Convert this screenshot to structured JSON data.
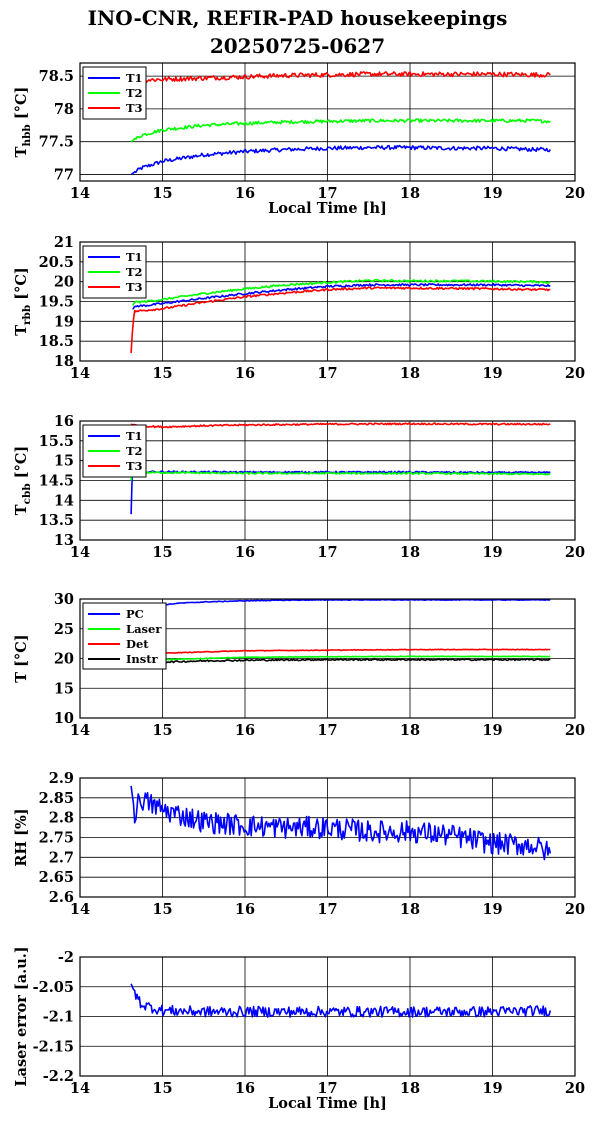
{
  "title": {
    "line1": "INO-CNR, REFIR-PAD housekeepings",
    "line2": "20250725-0627"
  },
  "chart_data": [
    {
      "type": "line",
      "ylabel": "T",
      "ylabel_sub": "hbb",
      "ylabel_unit": " [°C]",
      "xlabel": "Local Time [h]",
      "xlim": [
        14,
        20
      ],
      "ylim": [
        76.9,
        78.7
      ],
      "yticks": [
        77,
        77.5,
        78,
        78.5
      ],
      "xticks": [
        14,
        15,
        16,
        17,
        18,
        19,
        20
      ],
      "grid": true,
      "legend": "top-left",
      "series": [
        {
          "name": "T1",
          "color": "#0000ff",
          "x": [
            14.62,
            14.75,
            15.0,
            15.5,
            16.0,
            16.5,
            17.0,
            17.5,
            18.0,
            18.5,
            19.0,
            19.5,
            19.7
          ],
          "y": [
            77.0,
            77.1,
            77.2,
            77.3,
            77.35,
            77.38,
            77.4,
            77.41,
            77.41,
            77.4,
            77.4,
            77.38,
            77.38
          ],
          "noise": 0.03
        },
        {
          "name": "T2",
          "color": "#00ff00",
          "x": [
            14.62,
            14.75,
            15.0,
            15.5,
            16.0,
            16.5,
            17.0,
            17.5,
            18.0,
            18.5,
            19.0,
            19.5,
            19.7
          ],
          "y": [
            77.5,
            77.6,
            77.68,
            77.75,
            77.78,
            77.8,
            77.81,
            77.82,
            77.82,
            77.82,
            77.82,
            77.82,
            77.81
          ],
          "noise": 0.025
        },
        {
          "name": "T3",
          "color": "#ff0000",
          "x": [
            14.62,
            14.75,
            15.0,
            15.5,
            16.0,
            16.5,
            17.0,
            17.5,
            18.0,
            18.5,
            19.0,
            19.5,
            19.7
          ],
          "y": [
            78.42,
            78.44,
            78.45,
            78.47,
            78.49,
            78.51,
            78.52,
            78.53,
            78.53,
            78.53,
            78.53,
            78.52,
            78.52
          ],
          "noise": 0.035
        }
      ]
    },
    {
      "type": "line",
      "ylabel": "T",
      "ylabel_sub": "rbb",
      "ylabel_unit": " [°C]",
      "xlabel": "",
      "xlim": [
        14,
        20
      ],
      "ylim": [
        18,
        21
      ],
      "yticks": [
        18,
        18.5,
        19,
        19.5,
        20,
        20.5,
        21
      ],
      "xticks": [
        14,
        15,
        16,
        17,
        18,
        19,
        20
      ],
      "grid": true,
      "legend": "top-left",
      "series": [
        {
          "name": "T1",
          "color": "#0000ff",
          "x": [
            14.64,
            14.66,
            14.8,
            15.0,
            15.5,
            16.0,
            16.5,
            17.0,
            17.5,
            18.0,
            18.5,
            19.0,
            19.5,
            19.7
          ],
          "y": [
            19.3,
            19.38,
            19.4,
            19.45,
            19.58,
            19.7,
            19.8,
            19.88,
            19.92,
            19.92,
            19.92,
            19.92,
            19.9,
            19.9
          ],
          "noise": 0.025
        },
        {
          "name": "T2",
          "color": "#00ff00",
          "x": [
            14.64,
            14.66,
            14.8,
            15.0,
            15.5,
            16.0,
            16.5,
            17.0,
            17.5,
            18.0,
            18.5,
            19.0,
            19.5,
            19.7
          ],
          "y": [
            19.4,
            19.48,
            19.5,
            19.55,
            19.7,
            19.82,
            19.92,
            19.98,
            20.03,
            20.02,
            20.02,
            20.01,
            20.0,
            19.98
          ],
          "noise": 0.025
        },
        {
          "name": "T3",
          "color": "#ff0000",
          "x": [
            14.62,
            14.64,
            14.66,
            14.8,
            15.0,
            15.5,
            16.0,
            16.5,
            17.0,
            17.5,
            18.0,
            18.5,
            19.0,
            19.5,
            19.7
          ],
          "y": [
            18.2,
            18.9,
            19.25,
            19.28,
            19.32,
            19.48,
            19.62,
            19.72,
            19.8,
            19.84,
            19.84,
            19.83,
            19.82,
            19.8,
            19.8
          ],
          "noise": 0.025
        }
      ]
    },
    {
      "type": "line",
      "ylabel": "T",
      "ylabel_sub": "cbb",
      "ylabel_unit": " [°C]",
      "xlabel": "",
      "xlim": [
        14,
        20
      ],
      "ylim": [
        13,
        16
      ],
      "yticks": [
        13,
        13.5,
        14,
        14.5,
        15,
        15.5,
        16
      ],
      "xticks": [
        14,
        15,
        16,
        17,
        18,
        19,
        20
      ],
      "grid": true,
      "legend": "top-left",
      "series": [
        {
          "name": "T1",
          "color": "#0000ff",
          "x": [
            14.62,
            14.63,
            14.65,
            14.7,
            15.0,
            16.0,
            17.0,
            18.0,
            19.0,
            19.7
          ],
          "y": [
            13.65,
            14.7,
            14.72,
            14.72,
            14.72,
            14.71,
            14.71,
            14.71,
            14.7,
            14.7
          ],
          "noise": 0.02
        },
        {
          "name": "T2",
          "color": "#00ff00",
          "x": [
            14.62,
            14.63,
            14.65,
            14.7,
            15.0,
            16.0,
            17.0,
            18.0,
            19.0,
            19.7
          ],
          "y": [
            14.5,
            14.7,
            14.7,
            14.7,
            14.7,
            14.68,
            14.68,
            14.68,
            14.67,
            14.66
          ],
          "noise": 0.02
        },
        {
          "name": "T3",
          "color": "#ff0000",
          "x": [
            14.62,
            14.7,
            15.0,
            15.5,
            16.0,
            17.0,
            18.0,
            19.0,
            19.7
          ],
          "y": [
            15.92,
            15.88,
            15.85,
            15.88,
            15.9,
            15.92,
            15.93,
            15.92,
            15.92
          ],
          "noise": 0.02
        }
      ]
    },
    {
      "type": "line",
      "ylabel": "T",
      "ylabel_sub": "",
      "ylabel_unit": " [°C]",
      "xlabel": "",
      "xlim": [
        14,
        20
      ],
      "ylim": [
        10,
        30
      ],
      "yticks": [
        10,
        15,
        20,
        25,
        30
      ],
      "xticks": [
        14,
        15,
        16,
        17,
        18,
        19,
        20
      ],
      "grid": true,
      "legend": "top-left",
      "series": [
        {
          "name": "PC",
          "color": "#0000ff",
          "x": [
            14.62,
            15.0,
            15.2,
            15.5,
            16.0,
            16.5,
            17.0,
            18.0,
            19.0,
            19.7
          ],
          "y": [
            28.5,
            29.0,
            29.3,
            29.5,
            29.7,
            29.8,
            29.85,
            29.85,
            29.85,
            29.85
          ],
          "noise": 0.05
        },
        {
          "name": "Laser",
          "color": "#00ff00",
          "x": [
            14.62,
            15.0,
            15.5,
            16.0,
            17.0,
            18.0,
            19.0,
            19.7
          ],
          "y": [
            19.5,
            19.8,
            20.0,
            20.2,
            20.3,
            20.35,
            20.35,
            20.35
          ],
          "noise": 0.05
        },
        {
          "name": "Det",
          "color": "#ff0000",
          "x": [
            14.62,
            15.0,
            15.5,
            16.0,
            17.0,
            18.0,
            19.0,
            19.7
          ],
          "y": [
            20.5,
            20.9,
            21.1,
            21.3,
            21.4,
            21.5,
            21.5,
            21.5
          ],
          "noise": 0.05
        },
        {
          "name": "Instr",
          "color": "#000000",
          "x": [
            14.62,
            15.0,
            15.5,
            16.0,
            17.0,
            18.0,
            19.0,
            19.7
          ],
          "y": [
            19.2,
            19.4,
            19.6,
            19.7,
            19.8,
            19.8,
            19.8,
            19.8
          ],
          "noise": 0.12
        }
      ]
    },
    {
      "type": "line",
      "ylabel": "RH [%]",
      "ylabel_sub": "",
      "ylabel_unit": "",
      "xlabel": "",
      "xlim": [
        14,
        20
      ],
      "ylim": [
        2.6,
        2.9
      ],
      "yticks": [
        2.6,
        2.65,
        2.7,
        2.75,
        2.8,
        2.85,
        2.9
      ],
      "xticks": [
        14,
        15,
        16,
        17,
        18,
        19,
        20
      ],
      "grid": true,
      "legend": "none",
      "series": [
        {
          "name": "",
          "color": "#0000ff",
          "x": [
            14.62,
            14.67,
            14.72,
            14.8,
            15.0,
            15.5,
            16.0,
            16.5,
            17.0,
            17.5,
            18.0,
            18.5,
            19.0,
            19.5,
            19.7
          ],
          "y": [
            2.88,
            2.8,
            2.85,
            2.84,
            2.82,
            2.79,
            2.78,
            2.775,
            2.775,
            2.765,
            2.765,
            2.755,
            2.735,
            2.73,
            2.71
          ],
          "noise": 0.028
        }
      ]
    },
    {
      "type": "line",
      "ylabel": "Laser error [a.u.]",
      "ylabel_sub": "",
      "ylabel_unit": "",
      "xlabel": "Local Time [h]",
      "xlim": [
        14,
        20
      ],
      "ylim": [
        -2.2,
        -2.0
      ],
      "yticks": [
        -2.2,
        -2.15,
        -2.1,
        -2.05,
        -2
      ],
      "xticks": [
        14,
        15,
        16,
        17,
        18,
        19,
        20
      ],
      "grid": true,
      "legend": "none",
      "series": [
        {
          "name": "",
          "color": "#0000ff",
          "x": [
            14.62,
            14.68,
            14.75,
            15.0,
            15.5,
            16.0,
            17.0,
            18.0,
            19.0,
            19.7
          ],
          "y": [
            -2.045,
            -2.065,
            -2.08,
            -2.09,
            -2.092,
            -2.092,
            -2.092,
            -2.092,
            -2.092,
            -2.09
          ],
          "noise": 0.009
        }
      ]
    }
  ]
}
